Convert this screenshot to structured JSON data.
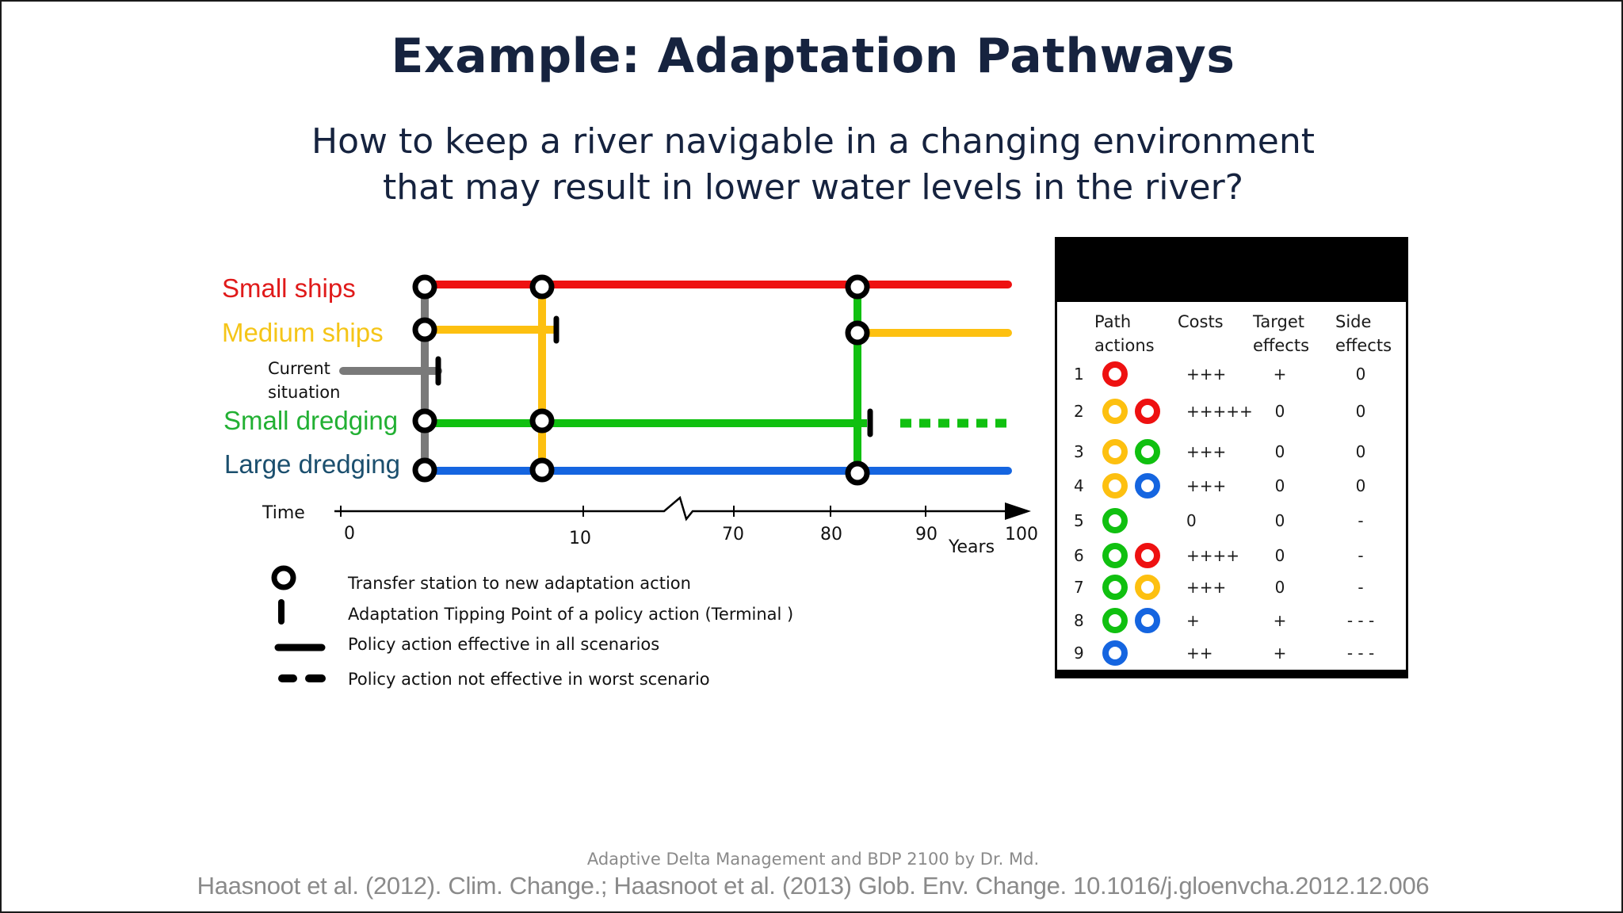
{
  "slide": {
    "title": "Example: Adaptation Pathways",
    "subtitle_line1": "How to keep a river navigable in a changing environment",
    "subtitle_line2": "that may result in lower water levels in the river?",
    "footer_course": "Adaptive Delta Management and BDP 2100 by Dr. Md.",
    "footer_ref": "Haasnoot et al. (2012). Clim. Change.; Haasnoot et al. (2013) Glob. Env. Change. 10.1016/j.gloenvcha.2012.12.006"
  },
  "diagram": {
    "lanes": {
      "small_ships": "Small ships",
      "medium_ships": "Medium ships",
      "current_line1": "Current",
      "current_line2": "situation",
      "small_dredging": "Small dredging",
      "large_dredging": "Large dredging"
    },
    "colors": {
      "small_ships": "#ee1111",
      "medium_ships": "#fdc010",
      "current": "#7a7a7a",
      "small_dredging": "#10c010",
      "large_dredging": "#1565e0",
      "small_ships_label": "#e01a1a",
      "medium_ships_label": "#f5c518",
      "small_dredging_label": "#22b033",
      "large_dredging_label": "#1b4f6e",
      "title": "#16233f"
    },
    "axis": {
      "label": "Time",
      "unit": "Years",
      "ticks": [
        "0",
        "10",
        "70",
        "80",
        "90",
        "100"
      ]
    },
    "legend": [
      {
        "icon": "transfer-station-circle-icon",
        "text": "Transfer station to new adaptation action"
      },
      {
        "icon": "tipping-point-bar-icon",
        "text": "Adaptation Tipping Point of a  policy action (Terminal )"
      },
      {
        "icon": "solid-line-icon",
        "text": "Policy action effective in all scenarios"
      },
      {
        "icon": "dashed-line-icon",
        "text": "Policy action not effective in worst scenario"
      }
    ]
  },
  "scorecard": {
    "headers": [
      "Path actions",
      "Costs",
      "Target effects",
      "Side effects"
    ],
    "header_lines": [
      [
        "Path",
        "actions"
      ],
      [
        "Costs"
      ],
      [
        "Target",
        "effects"
      ],
      [
        "Side",
        "effects"
      ]
    ],
    "rows": [
      {
        "n": "1",
        "actions": [
          "small_ships"
        ],
        "costs": "+++",
        "target": "+",
        "side": "0"
      },
      {
        "n": "2",
        "actions": [
          "medium_ships",
          "small_ships"
        ],
        "costs": "+++++",
        "target": "0",
        "side": "0"
      },
      {
        "n": "3",
        "actions": [
          "medium_ships",
          "small_dredging"
        ],
        "costs": "+++",
        "target": "0",
        "side": "0"
      },
      {
        "n": "4",
        "actions": [
          "medium_ships",
          "large_dredging"
        ],
        "costs": "+++",
        "target": "0",
        "side": "0"
      },
      {
        "n": "5",
        "actions": [
          "small_dredging"
        ],
        "costs": "0",
        "target": "0",
        "side": "-"
      },
      {
        "n": "6",
        "actions": [
          "small_dredging",
          "small_ships"
        ],
        "costs": "++++",
        "target": "0",
        "side": "-"
      },
      {
        "n": "7",
        "actions": [
          "small_dredging",
          "medium_ships"
        ],
        "costs": "+++",
        "target": "0",
        "side": "-"
      },
      {
        "n": "8",
        "actions": [
          "small_dredging",
          "large_dredging"
        ],
        "costs": "+",
        "target": "+",
        "side": "- - -"
      },
      {
        "n": "9",
        "actions": [
          "large_dredging"
        ],
        "costs": "++",
        "target": "+",
        "side": "- - -"
      }
    ]
  }
}
